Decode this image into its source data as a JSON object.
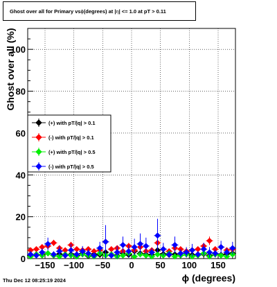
{
  "title_parts": {
    "prefix": "Ghost over all for Primary vs ",
    "phi": "ϕ",
    "mid": " (degrees) at |  ",
    "eta": "η",
    "suffix": "  | <= 1.0 at pT > 0.11"
  },
  "footer": "Thu Dec 12 08:25:19 2024",
  "chart_data": {
    "type": "scatter",
    "title": "Ghost over all for Primary vs ϕ (degrees) at | η | <= 1.0 at pT > 0.11",
    "xlabel": "ϕ (degrees)",
    "ylabel": "Ghost over all (%)",
    "xlim": [
      -180,
      180
    ],
    "ylim": [
      0,
      110
    ],
    "x_ticks": [
      -150,
      -100,
      -50,
      0,
      50,
      100,
      150
    ],
    "x_tick_labels": [
      "−150",
      "−100",
      "−50",
      "0",
      "50",
      "100",
      "150"
    ],
    "y_ticks": [
      0,
      20,
      40,
      60,
      80,
      100
    ],
    "y_tick_labels": [
      "0",
      "20",
      "40",
      "60",
      "80",
      "100"
    ],
    "grid": true,
    "legend_position": "left",
    "x": [
      -175,
      -165,
      -155,
      -145,
      -135,
      -125,
      -115,
      -105,
      -95,
      -85,
      -75,
      -65,
      -55,
      -45,
      -35,
      -25,
      -15,
      -5,
      5,
      15,
      25,
      35,
      45,
      55,
      65,
      75,
      85,
      95,
      105,
      115,
      125,
      135,
      145,
      155,
      165,
      175
    ],
    "series": [
      {
        "name": "(+) with pT/|q| > 0.1",
        "color": "#000000",
        "marker": "diamond",
        "values": [
          1.5,
          2.0,
          1.8,
          2.5,
          1.5,
          2.2,
          1.8,
          2.0,
          1.5,
          2.5,
          1.2,
          2.0,
          1.8,
          3.0,
          2.0,
          1.5,
          2.5,
          1.8,
          3.5,
          2.5,
          2.0,
          1.8,
          4.0,
          2.2,
          1.8,
          2.0,
          1.5,
          2.5,
          1.8,
          2.0,
          2.2,
          1.5,
          2.0,
          1.8,
          2.2,
          2.5
        ],
        "errors": [
          1.0,
          1.0,
          1.0,
          1.0,
          1.0,
          1.0,
          1.0,
          1.0,
          1.0,
          1.0,
          1.0,
          1.0,
          1.0,
          1.5,
          1.0,
          1.0,
          1.0,
          1.0,
          2.0,
          1.5,
          1.0,
          1.0,
          2.0,
          1.0,
          1.0,
          1.0,
          1.0,
          1.0,
          1.0,
          1.0,
          1.0,
          1.0,
          1.0,
          1.0,
          1.0,
          1.0
        ]
      },
      {
        "name": "(-) with pT/|q| > 0.1",
        "color": "#ff0000",
        "marker": "diamond",
        "values": [
          4.0,
          4.5,
          5.5,
          6.0,
          7.5,
          5.0,
          4.0,
          6.5,
          4.5,
          4.0,
          4.5,
          3.5,
          4.0,
          8.0,
          4.5,
          5.0,
          3.5,
          6.0,
          4.0,
          5.5,
          3.5,
          4.0,
          7.5,
          4.5,
          3.5,
          5.0,
          4.5,
          3.5,
          4.0,
          4.5,
          6.0,
          8.5,
          4.5,
          5.5,
          4.0,
          4.5
        ],
        "errors": [
          1.0,
          1.0,
          1.0,
          1.5,
          1.5,
          1.0,
          1.0,
          1.5,
          1.0,
          1.0,
          1.0,
          1.0,
          1.0,
          2.0,
          1.0,
          1.0,
          1.0,
          1.5,
          1.0,
          1.5,
          1.0,
          1.0,
          2.0,
          1.0,
          1.0,
          1.0,
          1.0,
          1.0,
          1.0,
          1.0,
          1.5,
          2.0,
          1.0,
          1.0,
          1.0,
          1.0
        ]
      },
      {
        "name": "(+) with pT/|q| > 0.5",
        "color": "#00ee00",
        "marker": "diamond",
        "values": [
          1.0,
          2.0,
          1.5,
          2.5,
          1.5,
          1.0,
          2.0,
          1.5,
          1.0,
          2.0,
          1.5,
          1.0,
          2.5,
          1.5,
          2.0,
          1.0,
          1.5,
          2.5,
          1.0,
          2.0,
          1.5,
          1.0,
          2.0,
          1.5,
          2.5,
          1.0,
          1.5,
          2.0,
          1.0,
          1.5,
          2.5,
          1.0,
          2.0,
          1.5,
          1.0,
          2.0
        ],
        "errors": [
          1.0,
          1.0,
          1.0,
          1.0,
          1.0,
          1.0,
          1.0,
          1.0,
          1.0,
          1.0,
          1.0,
          1.0,
          1.0,
          1.0,
          1.0,
          1.0,
          1.0,
          1.0,
          1.0,
          1.0,
          1.0,
          1.0,
          1.0,
          1.0,
          1.0,
          1.0,
          1.0,
          1.0,
          1.0,
          1.0,
          1.0,
          1.0,
          1.0,
          1.0,
          1.0,
          1.0
        ]
      },
      {
        "name": "(-) with pT/|q| > 0.5",
        "color": "#0000ff",
        "marker": "diamond",
        "values": [
          2.0,
          1.5,
          3.0,
          7.0,
          2.0,
          3.5,
          1.5,
          4.0,
          2.0,
          3.5,
          2.5,
          1.5,
          5.0,
          8.0,
          1.5,
          3.0,
          6.5,
          3.5,
          5.5,
          7.0,
          6.0,
          3.0,
          11.0,
          4.5,
          2.0,
          6.5,
          2.5,
          3.0,
          4.0,
          2.0,
          4.5,
          3.0,
          2.5,
          5.5,
          3.0,
          5.0
        ],
        "errors": [
          1.5,
          1.5,
          2.0,
          3.0,
          1.5,
          2.5,
          1.5,
          3.0,
          1.5,
          2.5,
          2.0,
          1.5,
          3.0,
          8.0,
          1.5,
          3.0,
          4.0,
          3.0,
          4.0,
          5.0,
          4.0,
          2.0,
          8.0,
          3.0,
          1.5,
          4.0,
          2.0,
          2.5,
          3.0,
          1.5,
          3.0,
          2.5,
          2.0,
          3.0,
          2.0,
          3.0
        ]
      }
    ]
  }
}
